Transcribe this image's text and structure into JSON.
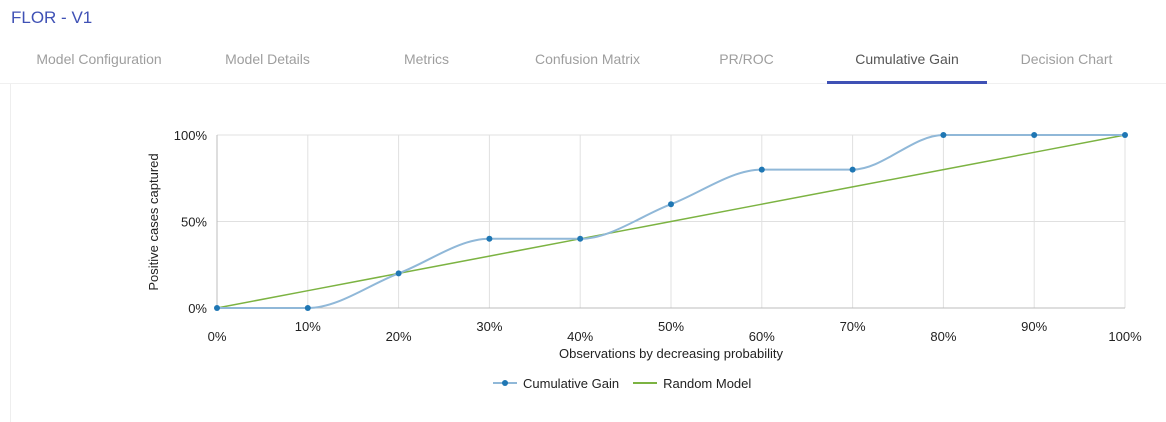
{
  "header": {
    "title": "FLOR - V1"
  },
  "tabs": [
    {
      "label": "Model Configuration",
      "active": false
    },
    {
      "label": "Model Details",
      "active": false
    },
    {
      "label": "Metrics",
      "active": false
    },
    {
      "label": "Confusion Matrix",
      "active": false
    },
    {
      "label": "PR/ROC",
      "active": false
    },
    {
      "label": "Cumulative Gain",
      "active": true
    },
    {
      "label": "Decision Chart",
      "active": false
    }
  ],
  "colors": {
    "accent": "#3f51b5",
    "cumulative_gain_line": "#90b8d8",
    "cumulative_gain_marker": "#1f77b4",
    "random_model_line": "#7cb342",
    "grid": "#e0e0e0"
  },
  "chart_data": {
    "type": "line",
    "title": "",
    "xlabel": "Observations by decreasing probability",
    "ylabel": "Positive cases captured",
    "x": [
      0,
      10,
      20,
      30,
      40,
      50,
      60,
      70,
      80,
      90,
      100
    ],
    "x_tick_labels": [
      "0%",
      "10%",
      "20%",
      "30%",
      "40%",
      "50%",
      "60%",
      "70%",
      "80%",
      "90%",
      "100%"
    ],
    "y_tick_labels": [
      "0%",
      "50%",
      "100%"
    ],
    "y_ticks": [
      0,
      50,
      100
    ],
    "xlim": [
      0,
      100
    ],
    "ylim": [
      0,
      100
    ],
    "grid": true,
    "legend_position": "bottom",
    "series": [
      {
        "name": "Cumulative Gain",
        "values": [
          0,
          0,
          20,
          40,
          40,
          60,
          80,
          80,
          100,
          100,
          100
        ],
        "markers": true,
        "smooth": true
      },
      {
        "name": "Random Model",
        "values": [
          0,
          10,
          20,
          30,
          40,
          50,
          60,
          70,
          80,
          90,
          100
        ],
        "markers": false,
        "smooth": false
      }
    ]
  },
  "legend": {
    "items": [
      {
        "label": "Cumulative Gain"
      },
      {
        "label": "Random Model"
      }
    ]
  }
}
